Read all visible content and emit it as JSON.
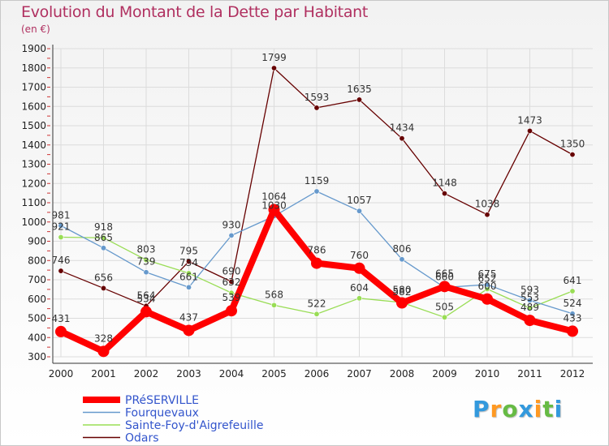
{
  "chart_data": {
    "type": "line",
    "title": "Evolution du Montant de la Dette par Habitant",
    "subtitle": "(en €)",
    "x": [
      "2000",
      "2001",
      "2002",
      "2003",
      "2004",
      "2005",
      "2006",
      "2007",
      "2008",
      "2009",
      "2010",
      "2011",
      "2012"
    ],
    "ylim": [
      300,
      1900
    ],
    "yticks": [
      300,
      400,
      500,
      600,
      700,
      800,
      900,
      1000,
      1100,
      1200,
      1300,
      1400,
      1500,
      1600,
      1700,
      1800,
      1900
    ],
    "grid": true,
    "legend_position": "bottom-left",
    "series": [
      {
        "name": "PRéSERVILLE",
        "color": "#ff0000",
        "values": [
          431,
          328,
          534,
          437,
          539,
          1064,
          786,
          760,
          580,
          665,
          600,
          489,
          433
        ]
      },
      {
        "name": "Fourquevaux",
        "color": "#6699cc",
        "values": [
          981,
          865,
          739,
          661,
          930,
          1030,
          1159,
          1057,
          806,
          660,
          675,
          593,
          524
        ]
      },
      {
        "name": "Sainte-Foy-d'Aigrefeuille",
        "color": "#99dd55",
        "values": [
          921,
          918,
          803,
          734,
          632,
          568,
          522,
          604,
          582,
          505,
          652,
          553,
          641
        ]
      },
      {
        "name": "Odars",
        "color": "#660000",
        "values": [
          746,
          656,
          564,
          795,
          690,
          1799,
          1593,
          1635,
          1434,
          1148,
          1038,
          1473,
          1350
        ]
      }
    ]
  },
  "logo": {
    "text": "Proxiti",
    "letters": [
      "P",
      "r",
      "o",
      "x",
      "i",
      "t",
      "i"
    ],
    "colors": [
      "#3399dd",
      "#ff9922",
      "#66bb44",
      "#3399dd",
      "#ff9922",
      "#66bb44",
      "#3399dd"
    ]
  }
}
